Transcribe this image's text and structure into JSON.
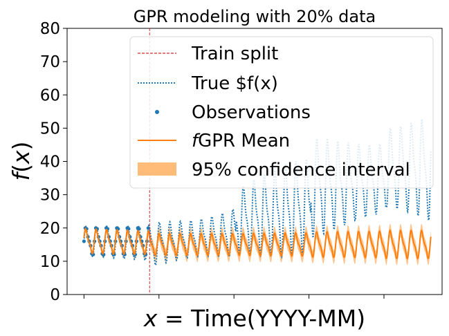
{
  "chart_data": {
    "type": "line",
    "title": "GPR modeling with 20% data",
    "xlabel": "x = Time(YYYY-MM)",
    "ylabel": "f(x)",
    "ylim": [
      0,
      80
    ],
    "yticks": [
      0,
      10,
      20,
      30,
      40,
      50,
      60,
      70,
      80
    ],
    "xlim": [
      0,
      1
    ],
    "xticks": [
      0.045,
      0.245,
      0.445,
      0.645,
      0.845
    ],
    "grid": false,
    "legend_position": "upper-right",
    "legend": [
      "Train split",
      "True $f(x)",
      "Observations",
      "fGPR Mean",
      "95% confidence interval"
    ],
    "colors": {
      "train_split": "#d62728",
      "true_fx": "#1f77b4",
      "observations": "#1f77b4",
      "gpr_mean": "#ff7f0e",
      "confidence": "#ffbb78"
    },
    "train_split_x": 0.22,
    "cycle_period": 0.028,
    "segments": [
      {
        "x_start": 0.045,
        "x_end": 0.22,
        "true_base": 16,
        "true_amp": 5,
        "gpr_base": 16,
        "gpr_amp": 4,
        "ci_halfwidth": 1
      },
      {
        "x_start": 0.22,
        "x_end": 0.45,
        "true_base": 15,
        "true_amp": 7,
        "gpr_base": 15,
        "gpr_amp": 3.5,
        "ci_halfwidth": 2
      },
      {
        "x_start": 0.45,
        "x_end": 0.65,
        "true_base": 22,
        "true_amp": 12,
        "gpr_base": 15,
        "gpr_amp": 3.5,
        "ci_halfwidth": 2
      },
      {
        "x_start": 0.65,
        "x_end": 0.85,
        "true_base": 32,
        "true_amp": 14,
        "gpr_base": 15,
        "gpr_amp": 4,
        "ci_halfwidth": 2
      },
      {
        "x_start": 0.85,
        "x_end": 0.97,
        "true_base": 38,
        "true_amp": 18,
        "gpr_base": 15,
        "gpr_amp": 4.5,
        "ci_halfwidth": 2
      }
    ]
  }
}
